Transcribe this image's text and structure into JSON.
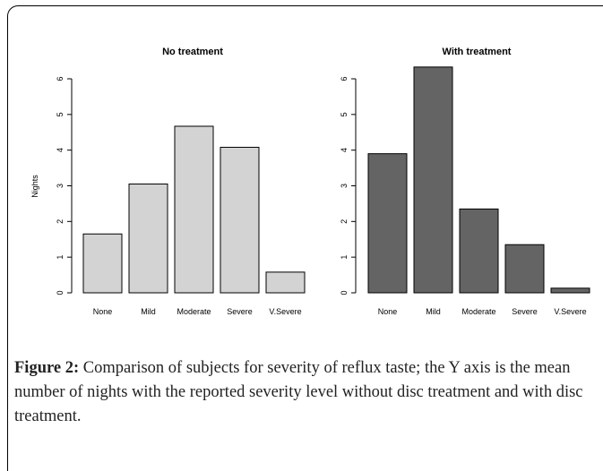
{
  "caption": {
    "label": "Figure 2:",
    "text": " Comparison of subjects for severity of reflux taste; the Y axis is the mean number of nights with the reported severity level without disc treatment and with disc treatment."
  },
  "chart_data": [
    {
      "type": "bar",
      "title": "No treatment",
      "ylabel": "Nights",
      "categories": [
        "None",
        "Mild",
        "Moderate",
        "Severe",
        "V.Severe"
      ],
      "values": [
        1.65,
        3.05,
        4.67,
        4.08,
        0.58
      ],
      "ylim": [
        0,
        6
      ],
      "yticks": [
        0,
        1,
        2,
        3,
        4,
        5,
        6
      ],
      "bar_color": "#d3d3d3"
    },
    {
      "type": "bar",
      "title": "With treatment",
      "ylabel": "",
      "categories": [
        "None",
        "Mild",
        "Moderate",
        "Severe",
        "V.Severe"
      ],
      "values": [
        3.9,
        6.33,
        2.35,
        1.35,
        0.13
      ],
      "ylim": [
        0,
        6
      ],
      "yticks": [
        0,
        1,
        2,
        3,
        4,
        5,
        6
      ],
      "bar_color": "#646464"
    }
  ]
}
